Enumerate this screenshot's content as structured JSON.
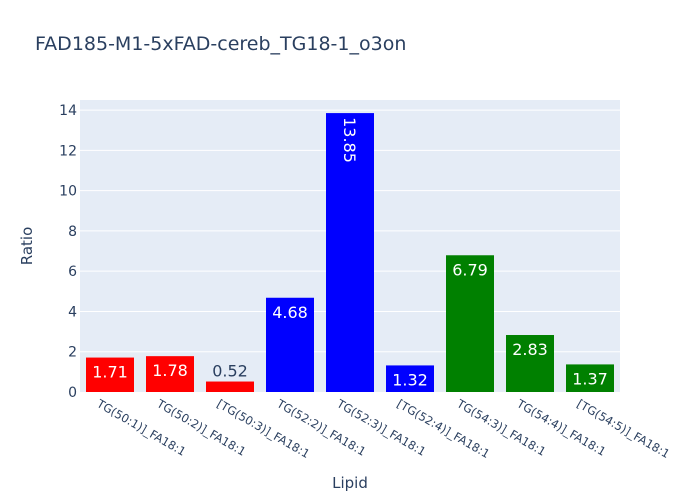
{
  "chart_data": {
    "type": "bar",
    "title": "FAD185-M1-5xFAD-cereb_TG18-1_o3on",
    "xlabel": "Lipid",
    "ylabel": "Ratio",
    "ylim": [
      0,
      14.5
    ],
    "yticks": [
      0,
      2,
      4,
      6,
      8,
      10,
      12,
      14
    ],
    "grid": true,
    "categories": [
      "TG(50:1)]_FA18:1",
      "TG(50:2)]_FA18:1",
      "[TG(50:3)]_FA18:1",
      "TG(52:2)]_FA18:1",
      "TG(52:3)]_FA18:1",
      "[TG(52:4)]_FA18:1",
      "TG(54:3)]_FA18:1",
      "TG(54:4)]_FA18:1",
      "[TG(54:5)]_FA18:1"
    ],
    "values": [
      1.71,
      1.78,
      0.52,
      4.68,
      13.85,
      1.32,
      6.79,
      2.83,
      1.37
    ],
    "value_labels": [
      "1.71",
      "1.78",
      "0.52",
      "4.68",
      "13.85",
      "1.32",
      "6.79",
      "2.83",
      "1.37"
    ],
    "colors": [
      "#ff0000",
      "#ff0000",
      "#ff0000",
      "#0000ff",
      "#0000ff",
      "#0000ff",
      "#008000",
      "#008000",
      "#008000"
    ],
    "plot_background": "#e5ecf6",
    "text_color": "#2a3f5f"
  }
}
